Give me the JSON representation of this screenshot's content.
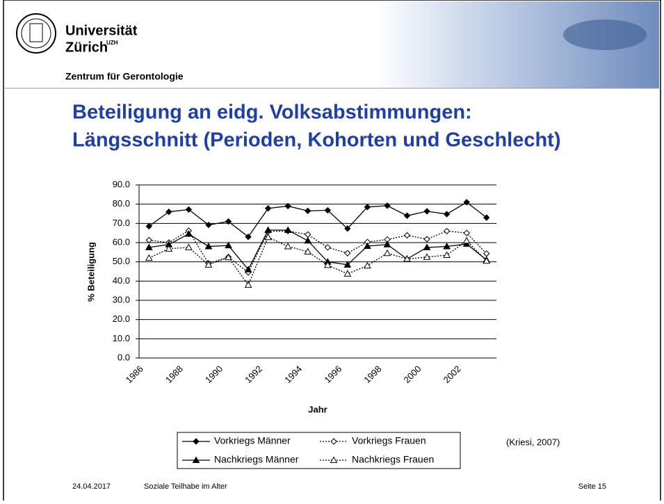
{
  "header": {
    "university_line1": "Universität",
    "university_line2": "Zürich",
    "university_sup": "UZH",
    "department": "Zentrum für Gerontologie"
  },
  "slide_title": {
    "line1": "Beteiligung an eidg. Volksabstimmungen:",
    "line2": "Längsschnitt (Perioden, Kohorten und Geschlecht)"
  },
  "chart_data": {
    "type": "line",
    "categories": [
      "1986",
      null,
      "1988",
      null,
      "1990",
      null,
      "1992",
      null,
      "1994",
      null,
      "1996",
      null,
      "1998",
      null,
      "2000",
      null,
      "2002",
      null
    ],
    "series": [
      {
        "name": "Vorkriegs Männer",
        "color": "#000000",
        "line_style": "solid",
        "marker": "diamond",
        "filled": true,
        "values": [
          68.5,
          76,
          77.2,
          69.2,
          71,
          63,
          77.8,
          79,
          76.5,
          76.8,
          67.3,
          78.5,
          79.2,
          74,
          76.3,
          74.8,
          81,
          73
        ]
      },
      {
        "name": "Vorkriegs Frauen",
        "color": "#000000",
        "line_style": "dotted",
        "marker": "diamond",
        "filled": false,
        "values": [
          61.3,
          60,
          66.2,
          49.2,
          52.5,
          44.5,
          65.8,
          66,
          64.2,
          57.5,
          54.5,
          60.3,
          61.6,
          63.8,
          61.8,
          66,
          65,
          54.3
        ]
      },
      {
        "name": "Nachkriegs Männer",
        "color": "#000000",
        "line_style": "solid",
        "marker": "triangle",
        "filled": true,
        "values": [
          57.5,
          59,
          64.5,
          58,
          58.5,
          46,
          66.5,
          66.5,
          61,
          50,
          48.5,
          58.2,
          59,
          51.5,
          57.5,
          58,
          59.3,
          51
        ]
      },
      {
        "name": "Nachkriegs Frauen",
        "color": "#000000",
        "line_style": "dotted",
        "marker": "triangle",
        "filled": false,
        "values": [
          52,
          56.8,
          57.5,
          48.5,
          52.3,
          38,
          62.8,
          58,
          55.3,
          48.3,
          43.8,
          48,
          54.5,
          51.5,
          52.5,
          53.5,
          61,
          50.5
        ]
      }
    ],
    "ylim": [
      0,
      90
    ],
    "yticks": [
      {
        "value": 0,
        "label": "0.0"
      },
      {
        "value": 10,
        "label": "10.0"
      },
      {
        "value": 20,
        "label": "20.0"
      },
      {
        "value": 30,
        "label": "30.0"
      },
      {
        "value": 40,
        "label": "40.0"
      },
      {
        "value": 50,
        "label": "50.0"
      },
      {
        "value": 60,
        "label": "60.0"
      },
      {
        "value": 70,
        "label": "70.0"
      },
      {
        "value": 80,
        "label": "80.0"
      },
      {
        "value": 90,
        "label": "90.0"
      }
    ],
    "grid": true,
    "x_label": "Jahr",
    "y_label": "% Beteiligung",
    "legend": "bottom",
    "annotation": "(Kriesi, 2007)"
  },
  "footer": {
    "date": "24.04.2017",
    "topic": "Soziale Teilhabe im Alter",
    "page": "Seite 15"
  }
}
